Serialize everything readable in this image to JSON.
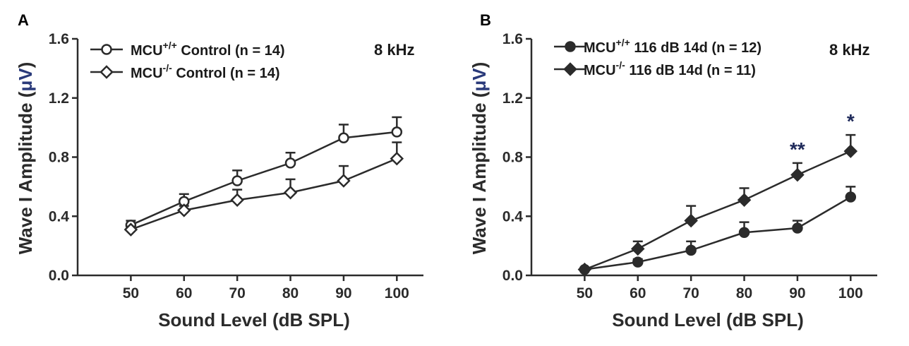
{
  "accent_colors": {
    "ink": "#2b2b2b",
    "mu": "#2a3a7a",
    "significance": "#1f2a5a"
  },
  "chart_data": [
    {
      "panel": "A",
      "type": "line",
      "annotation": "8 kHz",
      "xlabel": "Sound Level (dB SPL)",
      "ylabel_prefix": "Wave I Amplitude (",
      "ylabel_unit": "μV",
      "ylabel_suffix": ")",
      "x": [
        50,
        60,
        70,
        80,
        90,
        100
      ],
      "xticks": [
        "50",
        "60",
        "70",
        "80",
        "90",
        "100"
      ],
      "xlim": [
        40,
        105
      ],
      "ylim": [
        0.0,
        1.6
      ],
      "yticks": [
        "0.0",
        "0.4",
        "0.8",
        "1.2",
        "1.6"
      ],
      "grid": false,
      "legend_position": "top-left",
      "series": [
        {
          "legend_main": "MCU",
          "legend_sup": "+/+",
          "legend_rest": " Control (n = 14)",
          "marker": "circle-open",
          "values": [
            0.34,
            0.5,
            0.64,
            0.76,
            0.93,
            0.97
          ],
          "errors": [
            0.03,
            0.05,
            0.07,
            0.07,
            0.09,
            0.1
          ]
        },
        {
          "legend_main": "MCU",
          "legend_sup": "-/-",
          "legend_rest": " Control   (n = 14)",
          "marker": "diamond-open",
          "values": [
            0.31,
            0.44,
            0.51,
            0.56,
            0.64,
            0.79
          ],
          "errors": [
            0.02,
            0.03,
            0.07,
            0.09,
            0.1,
            0.11
          ]
        }
      ],
      "significance": []
    },
    {
      "panel": "B",
      "type": "line",
      "annotation": "8 kHz",
      "xlabel": "Sound Level (dB SPL)",
      "ylabel_prefix": "Wave I Amplitude (",
      "ylabel_unit": "μV",
      "ylabel_suffix": ")",
      "x": [
        50,
        60,
        70,
        80,
        90,
        100
      ],
      "xticks": [
        "50",
        "60",
        "70",
        "80",
        "90",
        "100"
      ],
      "xlim": [
        40,
        105
      ],
      "ylim": [
        0.0,
        1.6
      ],
      "yticks": [
        "0.0",
        "0.4",
        "0.8",
        "1.2",
        "1.6"
      ],
      "grid": false,
      "legend_position": "top-left",
      "series": [
        {
          "legend_main": "MCU",
          "legend_sup": "+/+",
          "legend_rest": " 116 dB 14d (n = 12)",
          "marker": "circle-filled",
          "values": [
            0.04,
            0.09,
            0.17,
            0.29,
            0.32,
            0.53
          ],
          "errors": [
            0.01,
            0.02,
            0.06,
            0.07,
            0.05,
            0.07
          ]
        },
        {
          "legend_main": "MCU",
          "legend_sup": "-/-",
          "legend_rest": " 116 dB 14d   (n = 11)",
          "marker": "diamond-filled",
          "values": [
            0.04,
            0.18,
            0.37,
            0.51,
            0.68,
            0.84
          ],
          "errors": [
            0.01,
            0.05,
            0.1,
            0.08,
            0.08,
            0.11
          ]
        }
      ],
      "significance": [
        {
          "x": 90,
          "text": "**"
        },
        {
          "x": 100,
          "text": "*"
        }
      ]
    }
  ]
}
